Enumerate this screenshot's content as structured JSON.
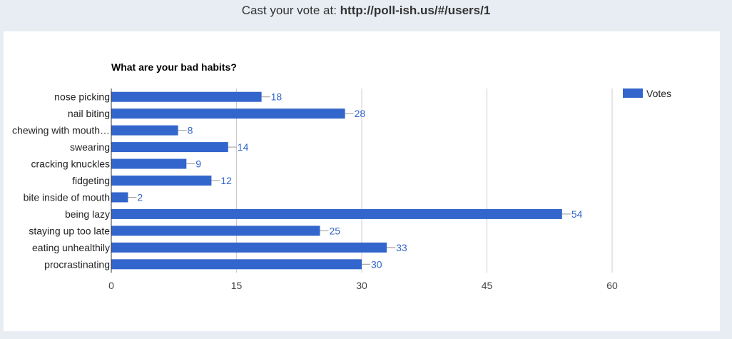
{
  "header": {
    "prefix": "Cast your vote at: ",
    "url": "http://poll-ish.us/#/users/1"
  },
  "chart_data": {
    "type": "bar",
    "orientation": "horizontal",
    "title": "What are your bad habits?",
    "categories": [
      "nose picking",
      "nail biting",
      "chewing with mouth…",
      "swearing",
      "cracking knuckles",
      "fidgeting",
      "bite inside of mouth",
      "being lazy",
      "staying up too late",
      "eating unhealthily",
      "procrastinating"
    ],
    "series": [
      {
        "name": "Votes",
        "values": [
          18,
          28,
          8,
          14,
          9,
          12,
          2,
          54,
          25,
          33,
          30
        ],
        "color": "#3366cc"
      }
    ],
    "xlim": [
      0,
      60
    ],
    "xticks": [
      0,
      15,
      30,
      45,
      60
    ],
    "grid": true,
    "legend_position": "right",
    "data_labels": true
  }
}
